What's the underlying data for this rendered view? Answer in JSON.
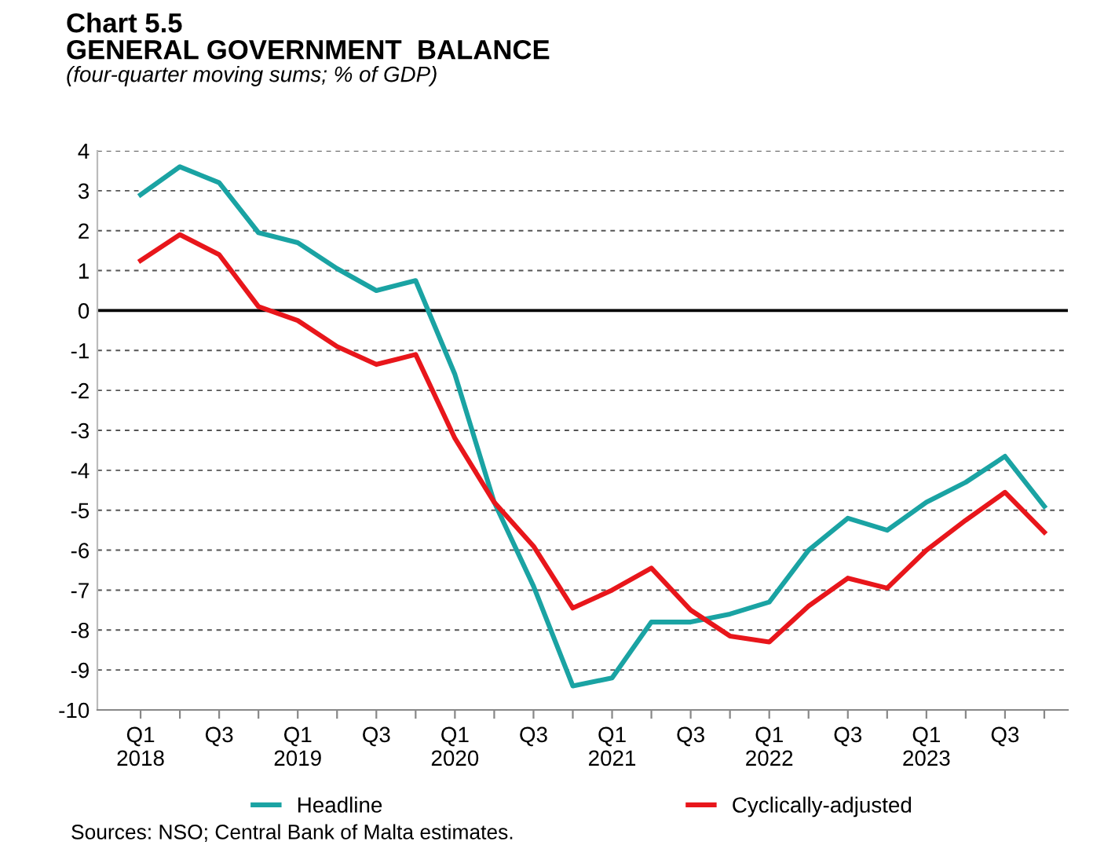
{
  "chart_data": {
    "type": "line",
    "title": "Chart 5.5\nGENERAL GOVERNMENT  BALANCE",
    "subtitle": "(four-quarter moving sums; % of GDP)",
    "categories": [
      "Q1\n2018",
      null,
      "Q3",
      null,
      "Q1\n2019",
      null,
      "Q3",
      null,
      "Q1\n2020",
      null,
      "Q3",
      null,
      "Q1\n2021",
      null,
      "Q3",
      null,
      "Q1\n2022",
      null,
      "Q3",
      null,
      "Q1\n2023",
      null,
      "Q3",
      null
    ],
    "series": [
      {
        "name": "Headline",
        "color": "#1aa3a3",
        "values": [
          2.9,
          3.6,
          3.2,
          1.95,
          1.7,
          1.05,
          0.5,
          0.75,
          -1.6,
          -4.8,
          -6.9,
          -9.4,
          -9.2,
          -7.8,
          -7.8,
          -7.6,
          -7.3,
          -6.0,
          -5.2,
          -5.5,
          -4.8,
          -4.3,
          -3.65,
          -4.9
        ]
      },
      {
        "name": "Cyclically-adjusted",
        "color": "#e8161b",
        "values": [
          1.25,
          1.9,
          1.4,
          0.1,
          -0.25,
          -0.9,
          -1.35,
          -1.1,
          -3.2,
          -4.8,
          -5.9,
          -7.45,
          -7.0,
          -6.45,
          -7.5,
          -8.15,
          -8.3,
          -7.4,
          -6.7,
          -6.95,
          -6.0,
          -5.25,
          -4.55,
          -5.55
        ]
      }
    ],
    "ylim": [
      -10,
      4
    ],
    "yticks": [
      -10,
      -9,
      -8,
      -7,
      -6,
      -5,
      -4,
      -3,
      -2,
      -1,
      0,
      1,
      2,
      3,
      4
    ],
    "grid": "y",
    "legend": "bottom",
    "marker": "none",
    "line_style": "solid",
    "ref_lines": [
      {
        "axis": "y",
        "value": 0,
        "color": "#000000",
        "line_style": "solid"
      }
    ],
    "annotations": [
      "Sources: NSO; Central Bank of Malta estimates."
    ]
  }
}
